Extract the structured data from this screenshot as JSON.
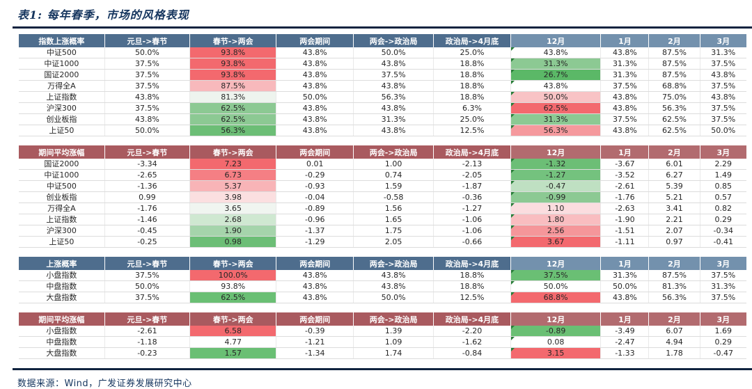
{
  "page": {
    "title": "表1: 每年春季，市场的风格表现",
    "source": "数据来源：Wind，广发证券发展研究中心"
  },
  "colors": {
    "header_blue": "#4e6d8d",
    "header_blue_light": "#7391ad",
    "header_red": "#a95a5f",
    "header_red_light": "#b26b6f",
    "strong_red": "#f3696e",
    "strong_green": "#5bb867",
    "title_text": "#15355e",
    "comment_marker_green": "#267d36"
  },
  "columns": [
    "元旦->春节",
    "春节->两会",
    "两会期间",
    "两会->政治局",
    "政治局->4月底",
    "12月",
    "1月",
    "2月",
    "3月"
  ],
  "tables": [
    {
      "name": "指数上涨概率",
      "theme": "blue",
      "rows": [
        {
          "label": "中证500",
          "values": [
            "50.0%",
            "93.8%",
            "43.8%",
            "50.0%",
            "25.0%",
            "43.8%",
            "43.8%",
            "87.5%",
            "31.3%"
          ],
          "colors": [
            null,
            "#f3696e",
            null,
            null,
            null,
            null,
            null,
            null,
            null
          ]
        },
        {
          "label": "中证1000",
          "values": [
            "37.5%",
            "93.8%",
            "43.8%",
            "43.8%",
            "18.8%",
            "31.3%",
            "31.3%",
            "87.5%",
            "37.5%"
          ],
          "colors": [
            null,
            "#f3696e",
            null,
            null,
            null,
            "#8cc993",
            null,
            null,
            null
          ]
        },
        {
          "label": "国证2000",
          "values": [
            "37.5%",
            "93.8%",
            "43.8%",
            "37.5%",
            "18.8%",
            "26.7%",
            "31.3%",
            "87.5%",
            "43.8%"
          ],
          "colors": [
            null,
            "#f3696e",
            null,
            null,
            null,
            "#5bb867",
            null,
            null,
            null
          ]
        },
        {
          "label": "万得全A",
          "values": [
            "37.5%",
            "87.5%",
            "43.8%",
            "43.8%",
            "18.8%",
            "43.8%",
            "37.5%",
            "68.8%",
            "37.5%"
          ],
          "colors": [
            null,
            "#f8b9bc",
            null,
            null,
            null,
            null,
            null,
            null,
            null
          ]
        },
        {
          "label": "上证指数",
          "values": [
            "43.8%",
            "81.3%",
            "50.0%",
            "56.3%",
            "18.8%",
            "50.0%",
            "43.8%",
            "75.0%",
            "43.8%"
          ],
          "colors": [
            null,
            "#eef4ee",
            null,
            null,
            null,
            "#f8c3c5",
            null,
            null,
            null
          ]
        },
        {
          "label": "沪深300",
          "values": [
            "37.5%",
            "62.5%",
            "43.8%",
            "43.8%",
            "6.3%",
            "62.5%",
            "43.8%",
            "56.3%",
            "37.5%"
          ],
          "colors": [
            null,
            "#8cc993",
            null,
            null,
            null,
            "#f3696e",
            null,
            null,
            null
          ]
        },
        {
          "label": "创业板指",
          "values": [
            "43.8%",
            "62.5%",
            "43.8%",
            "31.3%",
            "25.0%",
            "31.3%",
            "37.5%",
            "62.5%",
            "37.5%"
          ],
          "colors": [
            null,
            "#8cc993",
            null,
            null,
            null,
            "#8cc993",
            null,
            null,
            null
          ]
        },
        {
          "label": "上证50",
          "values": [
            "50.0%",
            "56.3%",
            "43.8%",
            "43.8%",
            "12.5%",
            "56.3%",
            "43.8%",
            "62.5%",
            "50.0%"
          ],
          "colors": [
            null,
            "#6cbe76",
            null,
            null,
            null,
            "#f5999d",
            null,
            null,
            null
          ]
        }
      ]
    },
    {
      "name": "期间平均涨幅",
      "theme": "red",
      "rows": [
        {
          "label": "国证2000",
          "values": [
            "-3.34",
            "7.23",
            "0.01",
            "1.00",
            "-2.13",
            "-1.32",
            "-3.67",
            "6.01",
            "2.29"
          ],
          "colors": [
            null,
            "#f3696e",
            null,
            null,
            null,
            "#6cbe76",
            null,
            null,
            null
          ]
        },
        {
          "label": "中证1000",
          "values": [
            "-2.65",
            "6.73",
            "-0.29",
            "0.74",
            "-2.05",
            "-1.27",
            "-3.52",
            "6.27",
            "1.49"
          ],
          "colors": [
            null,
            "#f57f84",
            null,
            null,
            null,
            "#74c27e",
            null,
            null,
            null
          ]
        },
        {
          "label": "中证500",
          "values": [
            "-1.36",
            "5.37",
            "-0.93",
            "1.59",
            "-1.87",
            "-0.47",
            "-2.61",
            "5.39",
            "0.85"
          ],
          "colors": [
            null,
            "#f8b4b7",
            null,
            null,
            null,
            "#bfe0c2",
            null,
            null,
            null
          ]
        },
        {
          "label": "创业板指",
          "values": [
            "0.99",
            "3.98",
            "-0.04",
            "-0.58",
            "-0.36",
            "-0.99",
            "-1.76",
            "5.21",
            "0.57"
          ],
          "colors": [
            null,
            "#fbdfe0",
            null,
            null,
            null,
            "#8cc993",
            null,
            null,
            null
          ]
        },
        {
          "label": "万得全A",
          "values": [
            "-1.76",
            "3.65",
            "-0.89",
            "1.56",
            "-1.27",
            "1.10",
            "-2.63",
            "3.41",
            "0.82"
          ],
          "colors": [
            null,
            "#f0f5f0",
            null,
            null,
            null,
            "#fbdddf",
            null,
            null,
            null
          ]
        },
        {
          "label": "上证指数",
          "values": [
            "-1.46",
            "2.68",
            "-0.96",
            "1.65",
            "-1.06",
            "1.80",
            "-1.90",
            "2.21",
            "0.29"
          ],
          "colors": [
            null,
            "#cfe8d1",
            null,
            null,
            null,
            "#f9bdc0",
            null,
            null,
            null
          ]
        },
        {
          "label": "沪深300",
          "values": [
            "-0.45",
            "1.90",
            "-1.37",
            "1.75",
            "-1.06",
            "2.56",
            "-1.51",
            "2.07",
            "-0.34"
          ],
          "colors": [
            null,
            "#a5d4ab",
            null,
            null,
            null,
            "#f5969a",
            null,
            null,
            null
          ]
        },
        {
          "label": "上证50",
          "values": [
            "-0.25",
            "0.98",
            "-1.29",
            "2.05",
            "-0.66",
            "3.67",
            "-1.11",
            "0.97",
            "-0.41"
          ],
          "colors": [
            null,
            "#6cbe76",
            null,
            null,
            null,
            "#f3696e",
            null,
            null,
            null
          ]
        }
      ]
    },
    {
      "name": "上涨概率",
      "theme": "blue",
      "rows": [
        {
          "label": "小盘指数",
          "values": [
            "37.5%",
            "100.0%",
            "43.8%",
            "43.8%",
            "18.8%",
            "37.5%",
            "31.3%",
            "87.5%",
            "37.5%"
          ],
          "colors": [
            null,
            "#f3696e",
            null,
            null,
            null,
            "#6abf74",
            null,
            null,
            null
          ]
        },
        {
          "label": "中盘指数",
          "values": [
            "50.0%",
            "93.8%",
            "43.8%",
            "43.8%",
            "18.8%",
            "50.0%",
            "50.0%",
            "81.3%",
            "31.3%"
          ],
          "colors": [
            null,
            null,
            null,
            null,
            null,
            null,
            null,
            null,
            null
          ]
        },
        {
          "label": "大盘指数",
          "values": [
            "37.5%",
            "62.5%",
            "43.8%",
            "50.0%",
            "12.5%",
            "68.8%",
            "43.8%",
            "56.3%",
            "37.5%"
          ],
          "colors": [
            null,
            "#6abf74",
            null,
            null,
            null,
            "#f3696e",
            null,
            null,
            null
          ]
        }
      ]
    },
    {
      "name": "期间平均涨幅",
      "theme": "red",
      "rows": [
        {
          "label": "小盘指数",
          "values": [
            "-2.61",
            "6.58",
            "-0.39",
            "1.39",
            "-2.20",
            "-0.89",
            "-3.49",
            "6.07",
            "1.69"
          ],
          "colors": [
            null,
            "#f3696e",
            null,
            null,
            null,
            "#6abf74",
            null,
            null,
            null
          ]
        },
        {
          "label": "中盘指数",
          "values": [
            "-1.18",
            "4.77",
            "-1.21",
            "1.09",
            "-1.62",
            "0.08",
            "-2.47",
            "4.94",
            "0.29"
          ],
          "colors": [
            null,
            null,
            null,
            null,
            null,
            null,
            null,
            null,
            null
          ]
        },
        {
          "label": "大盘指数",
          "values": [
            "-0.23",
            "1.57",
            "-1.34",
            "1.74",
            "-0.84",
            "3.15",
            "-1.33",
            "1.78",
            "-0.47"
          ],
          "colors": [
            null,
            "#6abf74",
            null,
            null,
            null,
            "#f3696e",
            null,
            null,
            null
          ]
        }
      ]
    }
  ]
}
